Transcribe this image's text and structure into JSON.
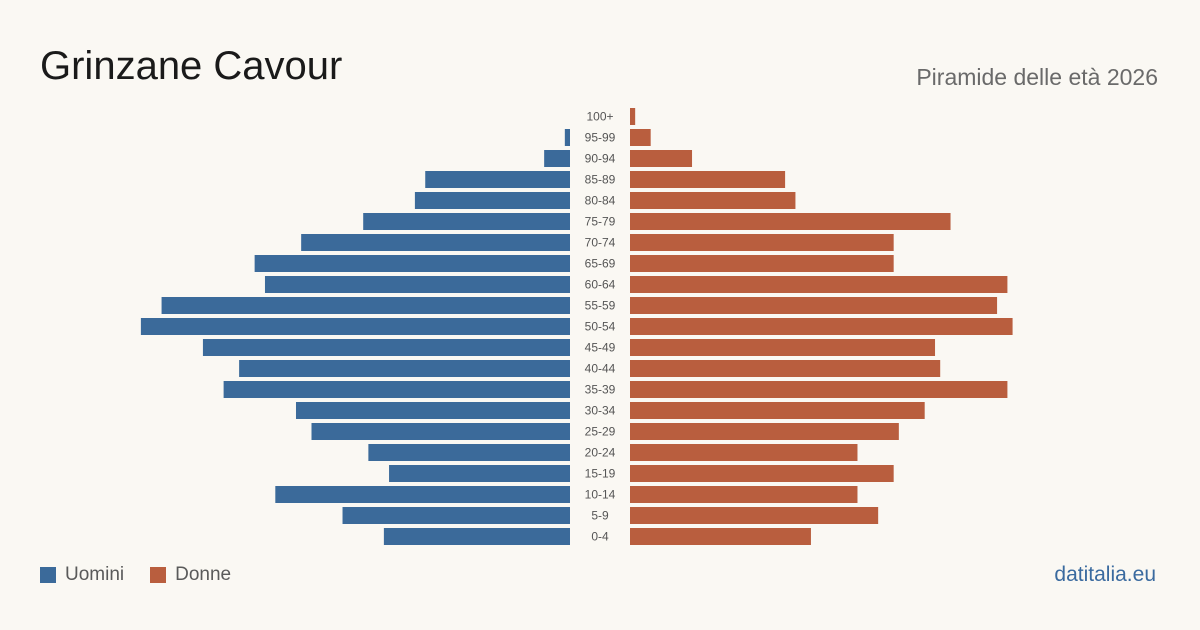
{
  "title": "Grinzane Cavour",
  "subtitle": "Piramide delle età 2026",
  "source": "datitalia.eu",
  "colors": {
    "men": "#3b6a9a",
    "women": "#b95e3e",
    "tick": "#555555"
  },
  "legend": {
    "men": "Uomini",
    "women": "Donne"
  },
  "chart_data": {
    "type": "bar",
    "orientation": "horizontal-pyramid",
    "categories": [
      "100+",
      "95-99",
      "90-94",
      "85-89",
      "80-84",
      "75-79",
      "70-74",
      "65-69",
      "60-64",
      "55-59",
      "50-54",
      "45-49",
      "40-44",
      "35-39",
      "30-34",
      "25-29",
      "20-24",
      "15-19",
      "10-14",
      "5-9",
      "0-4"
    ],
    "series": [
      {
        "name": "Uomini",
        "values": [
          0,
          1,
          5,
          28,
          30,
          40,
          52,
          61,
          59,
          79,
          83,
          71,
          64,
          67,
          53,
          50,
          39,
          35,
          57,
          44,
          36
        ]
      },
      {
        "name": "Donne",
        "values": [
          1,
          4,
          12,
          30,
          32,
          62,
          51,
          51,
          73,
          71,
          74,
          59,
          60,
          73,
          57,
          52,
          44,
          51,
          44,
          48,
          35
        ]
      }
    ]
  }
}
